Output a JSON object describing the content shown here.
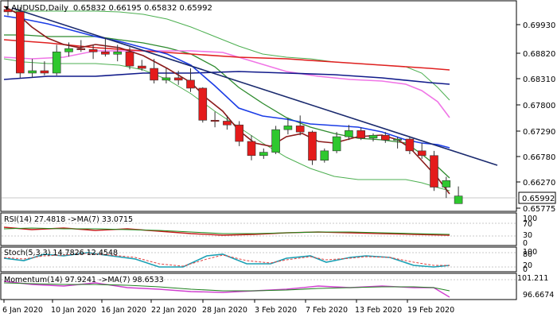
{
  "header": {
    "symbol_text": "AUDUSD,Daily",
    "ohlc_text": "0.65832 0.66195 0.65832 0.65992"
  },
  "colors": {
    "bull": "#2ec82e",
    "bear": "#e41b1b",
    "wick": "#333333",
    "price_tag_bg": "#ffffff",
    "sma_short_dark_red": "#8b1a1a",
    "sma_blue": "#1a3ce6",
    "sma_green": "#2e8b2e",
    "sma_magenta": "#f075e6",
    "sma_red_long": "#e02020",
    "sma_navy_long": "#101a8a",
    "bollinger_green": "#4caf50",
    "trendline": "#1a2a6e",
    "rsi_line": "#c81e1e",
    "rsi_ma": "#1e8c1e",
    "stoch_main": "#1aa0b4",
    "stoch_signal": "#e04040",
    "momentum_main": "#d040d0",
    "momentum_ma": "#208020",
    "gridline": "#c8c8c8"
  },
  "price_axis": {
    "labels": [
      "0.69930",
      "0.68820",
      "0.68310",
      "0.67800",
      "0.67290",
      "0.66780",
      "0.66270",
      "0.65775"
    ],
    "current_price": "0.65992"
  },
  "date_axis": {
    "labels": [
      "6 Jan 2020",
      "10 Jan 2020",
      "16 Jan 2020",
      "22 Jan 2020",
      "28 Jan 2020",
      "3 Feb 2020",
      "7 Feb 2020",
      "13 Feb 2020",
      "19 Feb 2020"
    ]
  },
  "rsi_panel": {
    "label": "RSI(14) 27.4818  ->MA(7) 33.0715",
    "scale": [
      "100",
      "70",
      "30",
      "0"
    ]
  },
  "stoch_panel": {
    "label": "Stoch(5,3,3) 14.7826 12.4548",
    "scale": [
      "100",
      "80",
      "20",
      "0"
    ]
  },
  "momentum_panel": {
    "label": "Momentum(14) 97.9241  ->MA(7) 98.6533",
    "scale": [
      "101.211",
      "96.6674"
    ]
  },
  "chart_data": {
    "type": "candlestick",
    "instrument": "AUDUSD",
    "timeframe": "Daily",
    "candles": [
      {
        "o": 0.6995,
        "h": 0.7015,
        "l": 0.6982,
        "c": 0.699
      },
      {
        "o": 0.699,
        "h": 0.7,
        "l": 0.685,
        "c": 0.686
      },
      {
        "o": 0.686,
        "h": 0.689,
        "l": 0.685,
        "c": 0.6865
      },
      {
        "o": 0.6865,
        "h": 0.6885,
        "l": 0.6855,
        "c": 0.686
      },
      {
        "o": 0.686,
        "h": 0.692,
        "l": 0.6855,
        "c": 0.6905
      },
      {
        "o": 0.6905,
        "h": 0.6925,
        "l": 0.6895,
        "c": 0.6912
      },
      {
        "o": 0.6912,
        "h": 0.693,
        "l": 0.6905,
        "c": 0.691
      },
      {
        "o": 0.691,
        "h": 0.692,
        "l": 0.689,
        "c": 0.6905
      },
      {
        "o": 0.6905,
        "h": 0.6935,
        "l": 0.6895,
        "c": 0.69
      },
      {
        "o": 0.69,
        "h": 0.692,
        "l": 0.6885,
        "c": 0.6905
      },
      {
        "o": 0.6905,
        "h": 0.6915,
        "l": 0.6868,
        "c": 0.6875
      },
      {
        "o": 0.6875,
        "h": 0.6888,
        "l": 0.6865,
        "c": 0.687
      },
      {
        "o": 0.687,
        "h": 0.689,
        "l": 0.6838,
        "c": 0.6845
      },
      {
        "o": 0.6845,
        "h": 0.687,
        "l": 0.6838,
        "c": 0.685
      },
      {
        "o": 0.685,
        "h": 0.6865,
        "l": 0.6835,
        "c": 0.6845
      },
      {
        "o": 0.6845,
        "h": 0.687,
        "l": 0.682,
        "c": 0.6828
      },
      {
        "o": 0.6828,
        "h": 0.683,
        "l": 0.6755,
        "c": 0.676
      },
      {
        "o": 0.676,
        "h": 0.6778,
        "l": 0.6745,
        "c": 0.6758
      },
      {
        "o": 0.6758,
        "h": 0.677,
        "l": 0.674,
        "c": 0.675
      },
      {
        "o": 0.675,
        "h": 0.6758,
        "l": 0.6705,
        "c": 0.6715
      },
      {
        "o": 0.6715,
        "h": 0.6728,
        "l": 0.6675,
        "c": 0.6685
      },
      {
        "o": 0.6685,
        "h": 0.67,
        "l": 0.6678,
        "c": 0.6692
      },
      {
        "o": 0.6692,
        "h": 0.6748,
        "l": 0.6688,
        "c": 0.674
      },
      {
        "o": 0.674,
        "h": 0.6765,
        "l": 0.673,
        "c": 0.6748
      },
      {
        "o": 0.6748,
        "h": 0.677,
        "l": 0.6728,
        "c": 0.6735
      },
      {
        "o": 0.6735,
        "h": 0.6738,
        "l": 0.6665,
        "c": 0.6675
      },
      {
        "o": 0.6675,
        "h": 0.67,
        "l": 0.667,
        "c": 0.6695
      },
      {
        "o": 0.6695,
        "h": 0.6735,
        "l": 0.669,
        "c": 0.6725
      },
      {
        "o": 0.6725,
        "h": 0.675,
        "l": 0.6718,
        "c": 0.6738
      },
      {
        "o": 0.6738,
        "h": 0.6745,
        "l": 0.6718,
        "c": 0.6722
      },
      {
        "o": 0.6722,
        "h": 0.6732,
        "l": 0.6715,
        "c": 0.6728
      },
      {
        "o": 0.6728,
        "h": 0.6735,
        "l": 0.6712,
        "c": 0.6718
      },
      {
        "o": 0.6718,
        "h": 0.6725,
        "l": 0.67,
        "c": 0.672
      },
      {
        "o": 0.672,
        "h": 0.6725,
        "l": 0.6688,
        "c": 0.6695
      },
      {
        "o": 0.6695,
        "h": 0.6712,
        "l": 0.6678,
        "c": 0.6685
      },
      {
        "o": 0.6685,
        "h": 0.6695,
        "l": 0.661,
        "c": 0.6618
      },
      {
        "o": 0.6618,
        "h": 0.664,
        "l": 0.6595,
        "c": 0.6632
      },
      {
        "o": 0.6583,
        "h": 0.66195,
        "l": 0.6583,
        "c": 0.65992
      }
    ],
    "ylim": [
      0.657,
      0.701
    ]
  }
}
